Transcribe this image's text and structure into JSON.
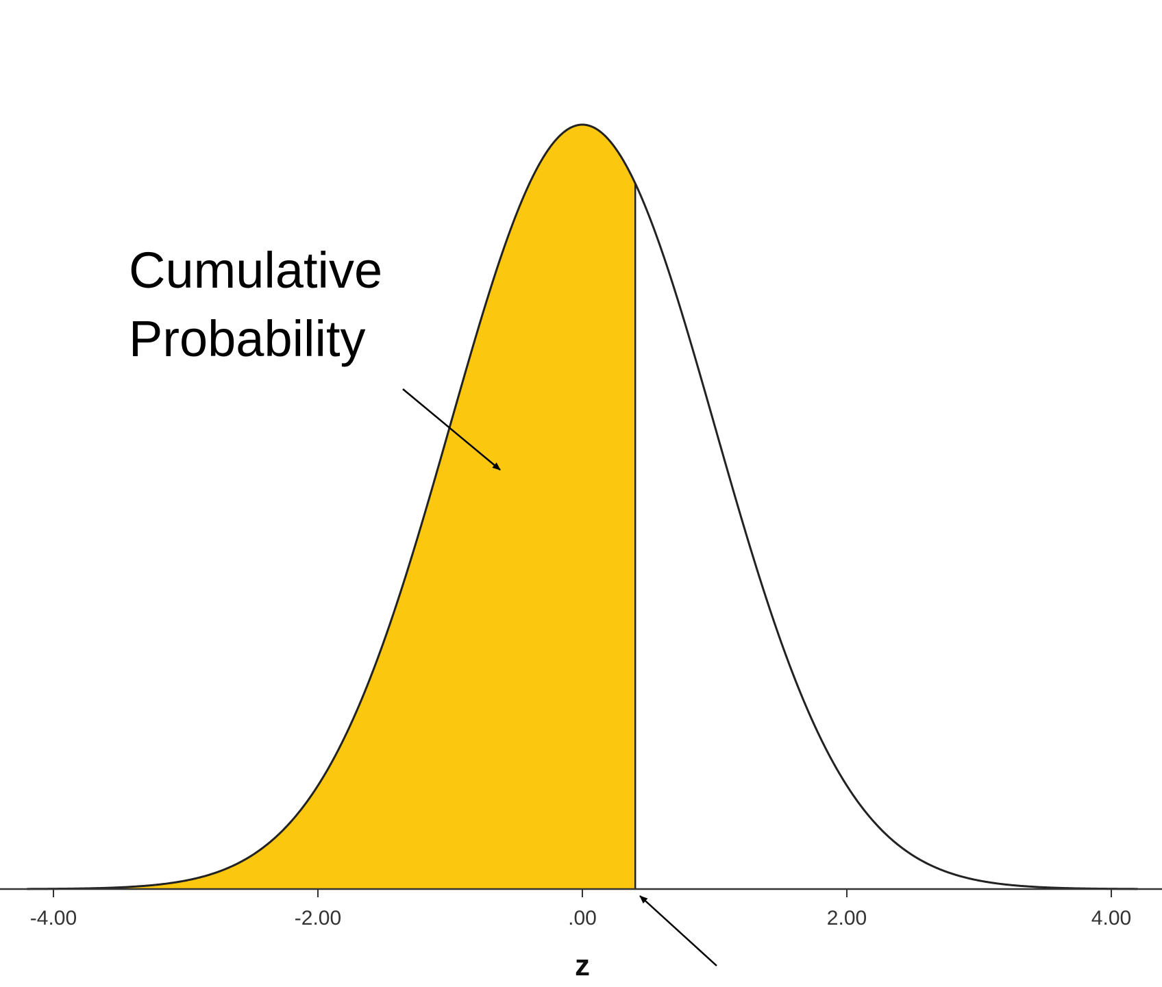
{
  "chart_data": {
    "type": "area",
    "distribution": "standard normal",
    "xlabel": "z",
    "ylabel": "",
    "title": "",
    "xlim": [
      -4.2,
      4.2
    ],
    "x_ticks": [
      -4,
      -2,
      0,
      2,
      4
    ],
    "x_tick_labels": [
      "-4.00",
      "-2.00",
      ".00",
      "2.00",
      "4.00"
    ],
    "shaded_region": {
      "from": "-inf",
      "to": 0.4
    },
    "annotation": {
      "lines": [
        "Cumulative",
        "Probability"
      ]
    },
    "grid": false,
    "legend": "none"
  },
  "colors": {
    "shade": "#FCC80F",
    "curve": "#222222",
    "axis": "#333333",
    "background": "#FFFFFF"
  }
}
